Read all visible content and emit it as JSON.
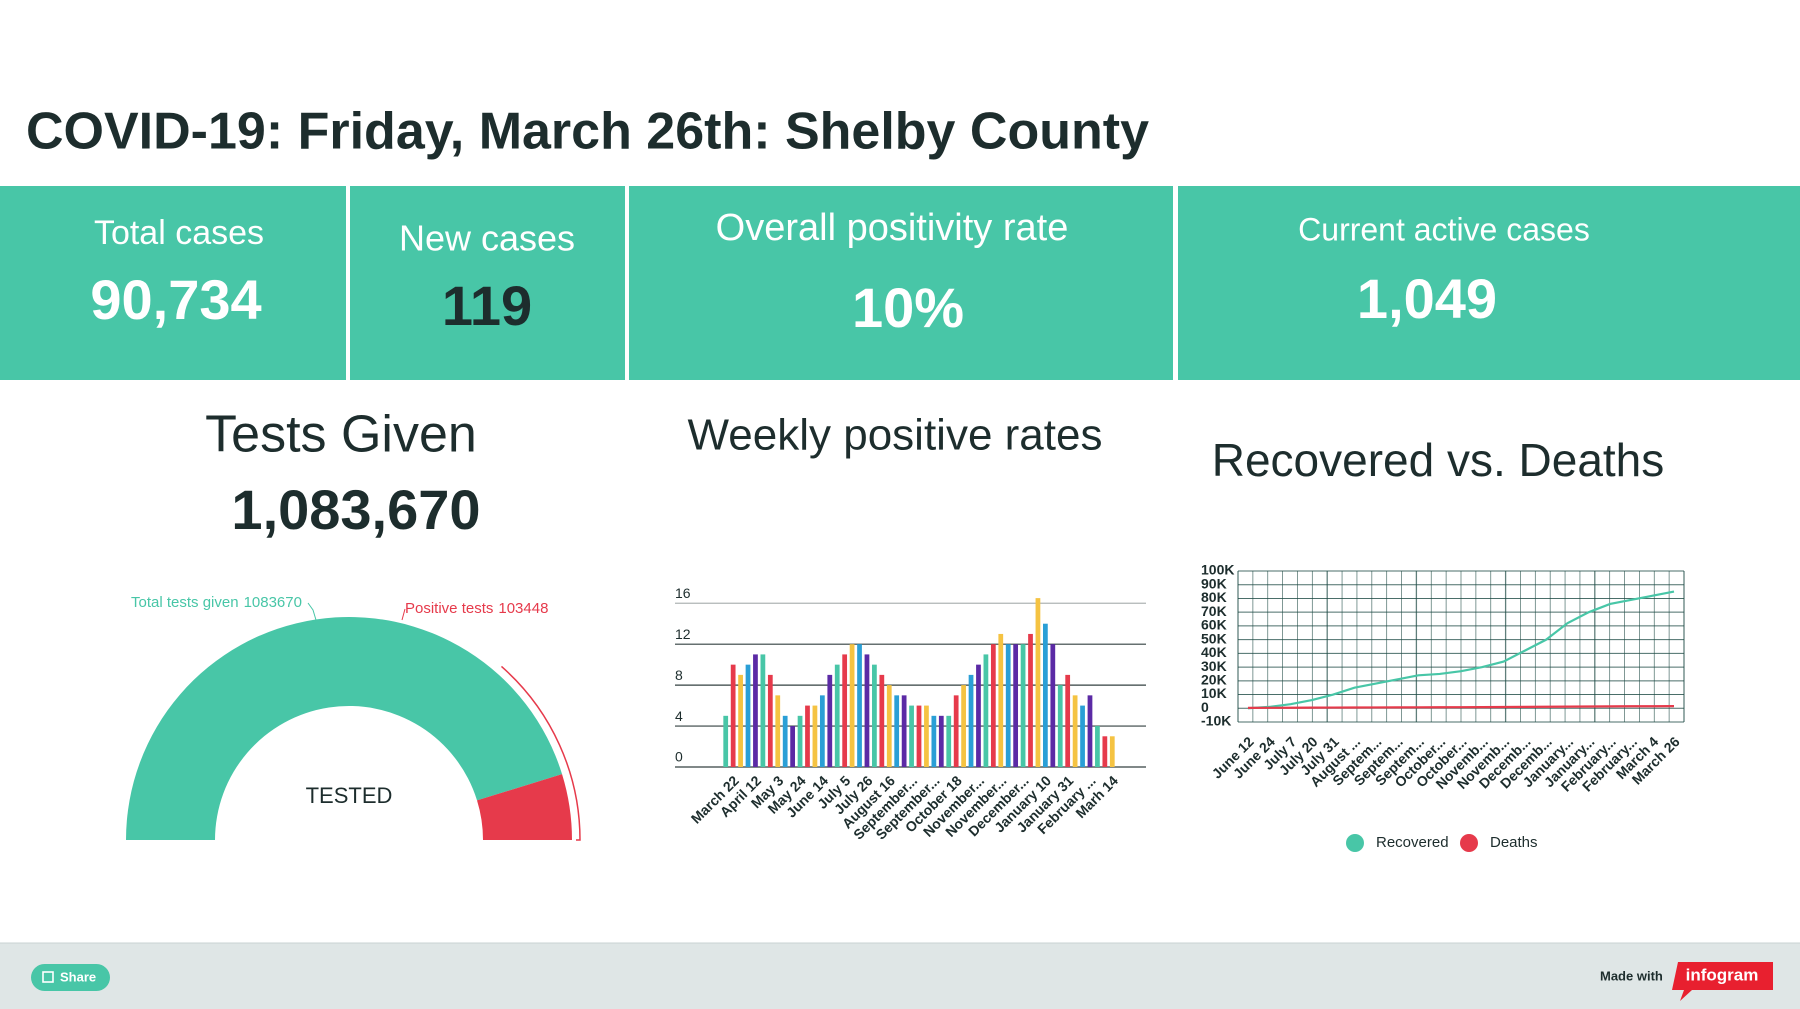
{
  "title": "COVID-19: Friday, March 26th: Shelby County",
  "kpis": [
    {
      "label": "Total cases",
      "value": "90,734"
    },
    {
      "label": "New cases",
      "value": "119"
    },
    {
      "label": "Overall positivity rate",
      "value": "10%"
    },
    {
      "label": "Current active cases",
      "value": "1,049"
    }
  ],
  "tests": {
    "title": "Tests Given",
    "value": "1,083,670"
  },
  "chart_data": [
    {
      "type": "gauge",
      "center_label": "TESTED",
      "series": [
        {
          "name": "Total tests given",
          "value": 1083670,
          "color": "#48c6a7"
        },
        {
          "name": "Positive tests",
          "value": 103448,
          "color": "#e63a4b"
        }
      ]
    },
    {
      "type": "bar",
      "title": "Weekly positive rates",
      "categories": [
        null,
        "March 22",
        null,
        null,
        "April 12",
        null,
        null,
        "May 3",
        null,
        null,
        "May 24",
        null,
        null,
        "June 14",
        null,
        null,
        "July 5",
        null,
        null,
        "July 26",
        null,
        null,
        "August 16",
        null,
        null,
        "September...",
        null,
        null,
        "September...",
        null,
        null,
        "October 18",
        null,
        null,
        "November...",
        null,
        null,
        "November...",
        null,
        null,
        "December...",
        null,
        null,
        "January 10",
        null,
        null,
        "January 31",
        null,
        null,
        "February ...",
        null,
        null,
        "Marh 14"
      ],
      "values": [
        5,
        10,
        9,
        10,
        11,
        11,
        9,
        7,
        5,
        4,
        5,
        6,
        6,
        7,
        9,
        10,
        11,
        12,
        12,
        11,
        10,
        9,
        8,
        7,
        7,
        6,
        6,
        6,
        5,
        5,
        5,
        7,
        8,
        9,
        10,
        11,
        12,
        13,
        12,
        12,
        12,
        13,
        16.5,
        14,
        12,
        8,
        9,
        7,
        6,
        7,
        4,
        3,
        3
      ],
      "colors": [
        "#48c6a7",
        "#e63a4b",
        "#f5c342",
        "#2a9fd6",
        "#5b2aa5"
      ],
      "ylim": [
        0,
        17
      ],
      "yticks": [
        0,
        4,
        8,
        12,
        16
      ],
      "grid": true
    },
    {
      "type": "line",
      "title": "Recovered vs. Deaths",
      "categories": [
        "June 12",
        "June 24",
        "July 7",
        "July 20",
        "July 31",
        "August ...",
        "Septem...",
        "Septem...",
        "Septem...",
        "October...",
        "October...",
        "Novemb...",
        "Novemb...",
        "Decemb...",
        "Decemb...",
        "January...",
        "January...",
        "February...",
        "February...",
        "March 4",
        "March 26"
      ],
      "series": [
        {
          "name": "Recovered",
          "color": "#48c6a7",
          "values": [
            0,
            1000,
            3000,
            6000,
            10000,
            15000,
            18000,
            21000,
            24000,
            25000,
            27000,
            30000,
            34000,
            42000,
            50000,
            62000,
            70000,
            76000,
            79000,
            82000,
            85000
          ]
        },
        {
          "name": "Deaths",
          "color": "#e63a4b",
          "values": [
            300,
            350,
            400,
            450,
            500,
            550,
            600,
            650,
            700,
            750,
            800,
            850,
            900,
            1000,
            1100,
            1200,
            1300,
            1400,
            1450,
            1500,
            1550
          ]
        }
      ],
      "ylim": [
        -10000,
        100000
      ],
      "yticks": [
        {
          "value": -10000,
          "label": "-10K"
        },
        0,
        {
          "value": 10000,
          "label": "10K"
        },
        {
          "value": 20000,
          "label": "20K"
        },
        {
          "value": 30000,
          "label": "30K"
        },
        {
          "value": 40000,
          "label": "40K"
        },
        {
          "value": 50000,
          "label": "50K"
        },
        {
          "value": 60000,
          "label": "60K"
        },
        {
          "value": 70000,
          "label": "70K"
        },
        {
          "value": 80000,
          "label": "80K"
        },
        {
          "value": 90000,
          "label": "90K"
        },
        {
          "value": 100000,
          "label": "100K"
        }
      ],
      "grid": true
    }
  ],
  "footer": {
    "share": "Share",
    "made_with": "Made with",
    "brand": "infogram"
  }
}
